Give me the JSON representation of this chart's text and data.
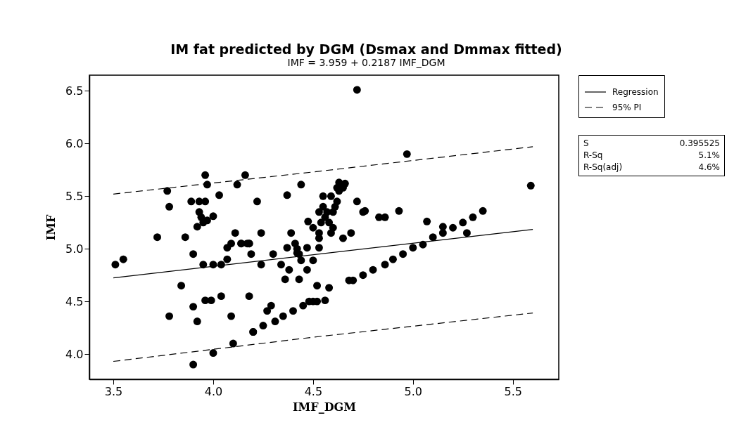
{
  "chart_data": {
    "type": "scatter",
    "title": "IM fat predicted by DGM (Dsmax and Dmmax fitted)",
    "subtitle": "IMF = 3.959 + 0.2187 IMF_DGM",
    "xlabel": "IMF_DGM",
    "ylabel": "IMF",
    "xlim": [
      3.38,
      5.73
    ],
    "ylim": [
      3.76,
      6.65
    ],
    "xticks": [
      3.5,
      {
        "value": 4,
        "label": "4.0"
      },
      4.5,
      {
        "value": 5,
        "label": "5.0"
      },
      5.5
    ],
    "yticks": [
      {
        "value": 4,
        "label": "4.0"
      },
      4.5,
      {
        "value": 5,
        "label": "5.0"
      },
      5.5,
      {
        "value": 6,
        "label": "6.0"
      },
      6.5
    ],
    "grid": false,
    "legend": "top right",
    "annotations": [
      "S",
      "0.395525",
      "R-Sq",
      "5.1%",
      "R-Sq(adj)",
      "4.6%"
    ],
    "series": [
      {
        "marker": "circle",
        "color": "#000000",
        "x": [
          3.51,
          3.55,
          3.72,
          3.77,
          3.78,
          3.78,
          3.84,
          3.86,
          3.89,
          3.9,
          3.9,
          3.9,
          3.92,
          3.93,
          3.93,
          3.94,
          3.95,
          3.96,
          3.96,
          3.97,
          3.92,
          3.95,
          3.97,
          3.96,
          3.99,
          4.0,
          4.0,
          4.0,
          4.03,
          4.04,
          4.04,
          4.07,
          4.07,
          4.09,
          4.09,
          4.1,
          4.11,
          4.12,
          4.14,
          4.16,
          4.17,
          4.18,
          4.18,
          4.19,
          4.2,
          4.2,
          4.22,
          4.24,
          4.24,
          4.25,
          4.27,
          4.29,
          4.3,
          4.31,
          4.34,
          4.35,
          4.36,
          4.37,
          4.37,
          4.38,
          4.39,
          4.4,
          4.41,
          4.42,
          4.42,
          4.43,
          4.43,
          4.44,
          4.44,
          4.45,
          4.47,
          4.47,
          4.475,
          4.48,
          4.5,
          4.5,
          4.52,
          4.52,
          4.53,
          4.53,
          4.53,
          4.53,
          4.54,
          4.55,
          4.55,
          4.56,
          4.56,
          4.58,
          4.58,
          4.59,
          4.59,
          4.6,
          4.6,
          4.62,
          4.62,
          4.63,
          4.63,
          4.65,
          4.65,
          4.68,
          4.69,
          4.7,
          4.72,
          4.72,
          4.75,
          4.75,
          4.76,
          4.8,
          4.83,
          4.86,
          4.86,
          4.9,
          4.93,
          4.95,
          4.97,
          5.0,
          5.05,
          5.07,
          5.1,
          5.15,
          5.15,
          5.2,
          5.25,
          5.27,
          5.3,
          5.35,
          5.59,
          4.14,
          4.18,
          4.5,
          4.61,
          4.57,
          4.66
        ],
        "values": [
          4.85,
          4.9,
          5.11,
          5.55,
          5.4,
          4.36,
          4.65,
          5.11,
          5.45,
          4.45,
          4.95,
          3.9,
          4.31,
          5.45,
          5.35,
          5.3,
          5.25,
          5.45,
          5.7,
          5.61,
          5.21,
          4.85,
          5.27,
          4.51,
          4.51,
          4.01,
          4.85,
          5.31,
          5.51,
          4.85,
          4.55,
          4.9,
          5.01,
          5.05,
          4.36,
          4.1,
          5.15,
          5.61,
          5.05,
          5.7,
          5.05,
          4.55,
          5.05,
          4.95,
          4.21,
          4.21,
          5.45,
          5.15,
          4.85,
          4.27,
          4.41,
          4.46,
          4.95,
          4.31,
          4.85,
          4.36,
          4.71,
          5.01,
          5.51,
          4.8,
          5.15,
          4.41,
          5.05,
          4.96,
          5.0,
          4.71,
          4.95,
          4.89,
          5.61,
          4.46,
          4.8,
          5.01,
          5.26,
          4.5,
          4.89,
          5.2,
          4.65,
          4.5,
          5.15,
          5.1,
          5.01,
          5.35,
          5.25,
          5.4,
          5.5,
          4.51,
          5.3,
          4.63,
          5.25,
          5.5,
          5.15,
          5.35,
          5.2,
          5.58,
          5.45,
          5.55,
          5.63,
          5.1,
          5.58,
          4.7,
          5.15,
          4.7,
          5.45,
          6.51,
          4.75,
          5.35,
          5.36,
          4.8,
          5.3,
          4.85,
          5.3,
          4.9,
          5.36,
          4.95,
          5.9,
          5.01,
          5.04,
          5.26,
          5.11,
          5.21,
          5.15,
          5.2,
          5.25,
          5.15,
          5.3,
          5.36,
          5.6,
          5.05,
          5.05,
          4.5,
          5.4,
          5.35,
          5.62
        ]
      },
      {
        "type": "line",
        "name": "Regression",
        "color": "#000000",
        "line_style": "solid",
        "x": [
          3.5,
          5.6
        ],
        "values": [
          4.724,
          5.184
        ]
      },
      {
        "type": "line",
        "name": "95% PI",
        "color": "#000000",
        "line_style": "dashed",
        "x": [
          3.5,
          4.5,
          5.6
        ],
        "values": [
          5.52,
          5.73,
          5.97
        ]
      },
      {
        "type": "line",
        "color": "#000000",
        "line_style": "dashed",
        "x": [
          3.5,
          4.5,
          5.6
        ],
        "values": [
          3.93,
          4.16,
          4.39
        ]
      }
    ]
  }
}
